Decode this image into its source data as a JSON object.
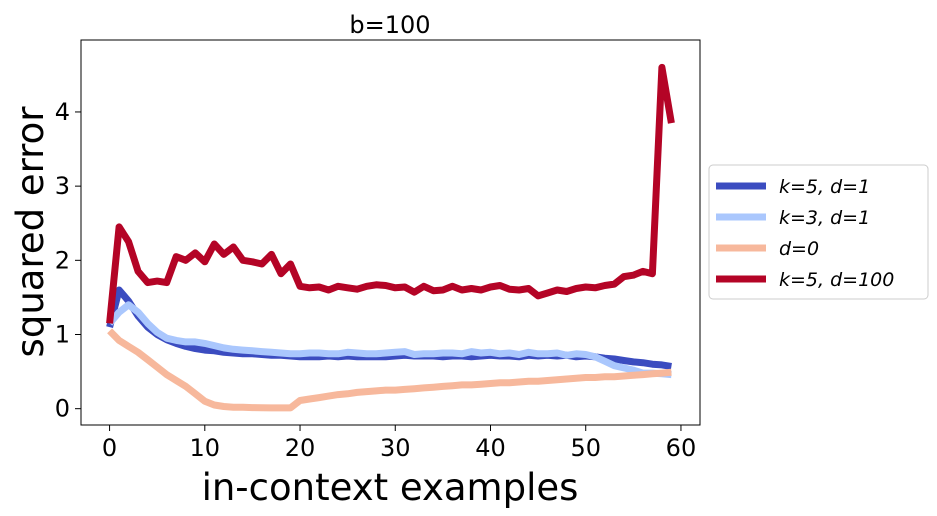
{
  "chart_data": {
    "type": "line",
    "title": "b=100",
    "xlabel": "in-context examples",
    "ylabel": "squared error",
    "xlim": [
      -3,
      62
    ],
    "ylim": [
      -0.22,
      4.97
    ],
    "xticks": [
      "0",
      "10",
      "20",
      "30",
      "40",
      "50",
      "60"
    ],
    "yticks": [
      "0",
      "1",
      "2",
      "3",
      "4"
    ],
    "legend_position": "outside-right",
    "series": [
      {
        "name": "k=5, d=1",
        "color": "#3b4cc0",
        "values": [
          1.1,
          1.6,
          1.45,
          1.25,
          1.1,
          1.0,
          0.93,
          0.88,
          0.84,
          0.81,
          0.79,
          0.78,
          0.76,
          0.75,
          0.74,
          0.74,
          0.73,
          0.72,
          0.72,
          0.71,
          0.7,
          0.7,
          0.7,
          0.71,
          0.7,
          0.71,
          0.7,
          0.7,
          0.7,
          0.7,
          0.71,
          0.72,
          0.71,
          0.71,
          0.71,
          0.7,
          0.71,
          0.71,
          0.7,
          0.71,
          0.72,
          0.71,
          0.71,
          0.7,
          0.72,
          0.71,
          0.72,
          0.71,
          0.72,
          0.7,
          0.71,
          0.7,
          0.68,
          0.67,
          0.65,
          0.63,
          0.62,
          0.6,
          0.59,
          0.57
        ]
      },
      {
        "name": "k=3, d=1",
        "color": "#aac7fd",
        "values": [
          1.15,
          1.3,
          1.4,
          1.3,
          1.15,
          1.03,
          0.95,
          0.92,
          0.9,
          0.9,
          0.88,
          0.85,
          0.82,
          0.8,
          0.79,
          0.78,
          0.77,
          0.76,
          0.75,
          0.74,
          0.74,
          0.75,
          0.75,
          0.74,
          0.74,
          0.76,
          0.75,
          0.74,
          0.74,
          0.75,
          0.76,
          0.77,
          0.73,
          0.74,
          0.74,
          0.75,
          0.75,
          0.74,
          0.77,
          0.75,
          0.76,
          0.74,
          0.75,
          0.73,
          0.76,
          0.74,
          0.74,
          0.75,
          0.72,
          0.74,
          0.73,
          0.7,
          0.64,
          0.58,
          0.55,
          0.52,
          0.48,
          0.48,
          0.47,
          0.46
        ]
      },
      {
        "name": "d=0",
        "color": "#f7b89c",
        "values": [
          1.05,
          0.92,
          0.84,
          0.76,
          0.66,
          0.56,
          0.46,
          0.38,
          0.3,
          0.2,
          0.1,
          0.05,
          0.03,
          0.02,
          0.02,
          0.015,
          0.012,
          0.01,
          0.01,
          0.01,
          0.11,
          0.13,
          0.15,
          0.17,
          0.19,
          0.2,
          0.22,
          0.23,
          0.24,
          0.25,
          0.25,
          0.26,
          0.27,
          0.28,
          0.29,
          0.3,
          0.31,
          0.32,
          0.32,
          0.33,
          0.34,
          0.35,
          0.35,
          0.36,
          0.37,
          0.37,
          0.38,
          0.39,
          0.4,
          0.41,
          0.42,
          0.42,
          0.43,
          0.43,
          0.44,
          0.45,
          0.46,
          0.47,
          0.48,
          0.49
        ]
      },
      {
        "name": "k=5, d=100",
        "color": "#b40426",
        "values": [
          1.15,
          2.45,
          2.25,
          1.85,
          1.7,
          1.72,
          1.7,
          2.05,
          2.0,
          2.1,
          1.98,
          2.22,
          2.08,
          2.18,
          2.0,
          1.98,
          1.95,
          2.08,
          1.82,
          1.95,
          1.65,
          1.63,
          1.64,
          1.6,
          1.65,
          1.63,
          1.61,
          1.65,
          1.67,
          1.66,
          1.63,
          1.64,
          1.57,
          1.65,
          1.59,
          1.6,
          1.65,
          1.6,
          1.62,
          1.6,
          1.64,
          1.66,
          1.61,
          1.6,
          1.62,
          1.52,
          1.56,
          1.6,
          1.58,
          1.62,
          1.64,
          1.63,
          1.66,
          1.68,
          1.78,
          1.8,
          1.85,
          1.82,
          4.6,
          3.85
        ]
      }
    ]
  }
}
